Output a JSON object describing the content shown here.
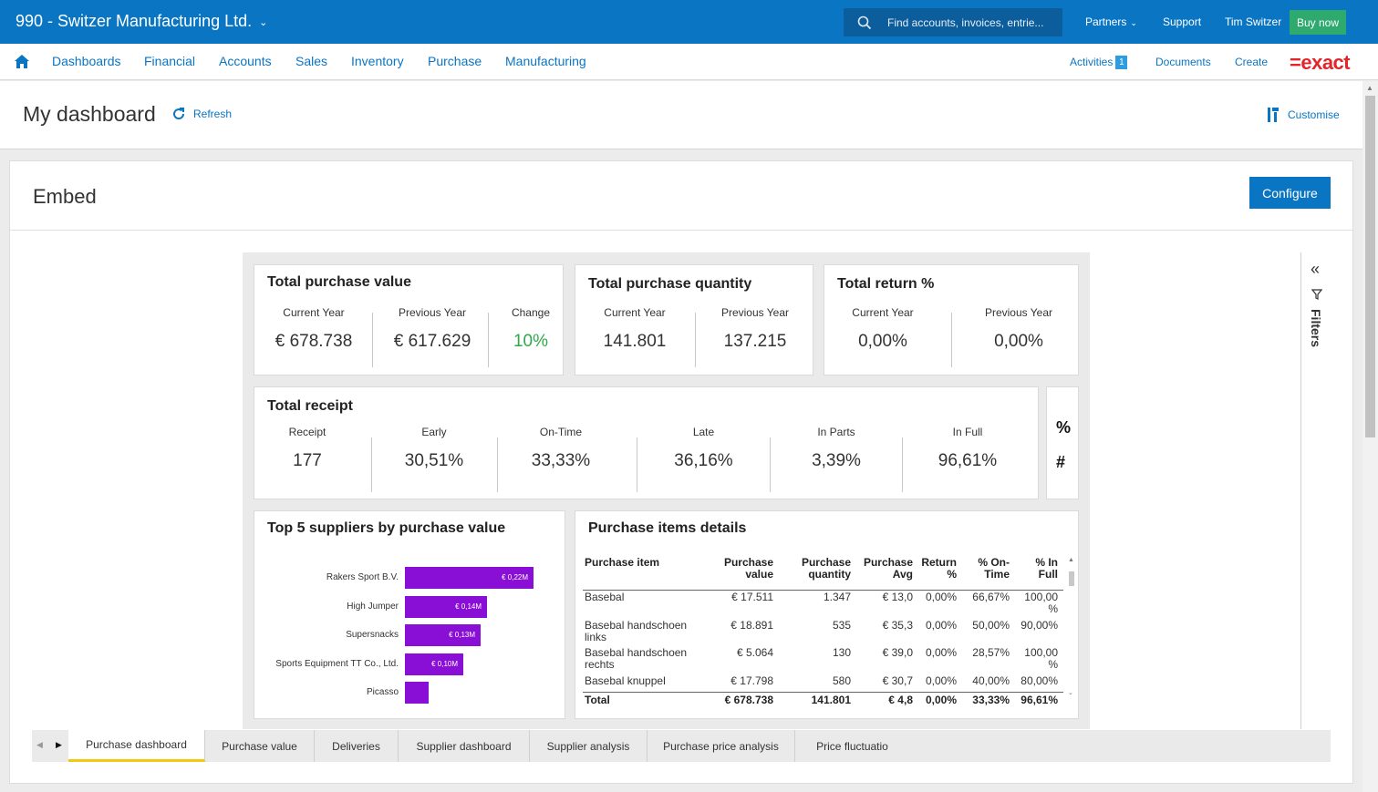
{
  "topbar": {
    "company": "990 - Switzer Manufacturing Ltd.",
    "search_placeholder": "Find accounts, invoices, entrie...",
    "partners": "Partners",
    "support": "Support",
    "user": "Tim Switzer",
    "buy_now": "Buy now"
  },
  "nav": {
    "items": [
      "Dashboards",
      "Financial",
      "Accounts",
      "Sales",
      "Inventory",
      "Purchase",
      "Manufacturing"
    ],
    "activities": "Activities",
    "activities_count": "1",
    "documents": "Documents",
    "create": "Create",
    "logo": "=exact"
  },
  "dashboard": {
    "title": "My dashboard",
    "refresh": "Refresh",
    "customise": "Customise"
  },
  "embed": {
    "title": "Embed",
    "configure": "Configure"
  },
  "kpis": {
    "purchase_value": {
      "title": "Total purchase value",
      "current_label": "Current Year",
      "current": "€ 678.738",
      "previous_label": "Previous Year",
      "previous": "€ 617.629",
      "change_label": "Change",
      "change": "10%"
    },
    "purchase_quantity": {
      "title": "Total purchase quantity",
      "current_label": "Current Year",
      "current": "141.801",
      "previous_label": "Previous Year",
      "previous": "137.215"
    },
    "return_pct": {
      "title": "Total return %",
      "current_label": "Current Year",
      "current": "0,00%",
      "previous_label": "Previous Year",
      "previous": "0,00%"
    },
    "receipt": {
      "title": "Total receipt",
      "cols": [
        {
          "label": "Receipt",
          "value": "177"
        },
        {
          "label": "Early",
          "value": "30,51%"
        },
        {
          "label": "On-Time",
          "value": "33,33%"
        },
        {
          "label": "Late",
          "value": "36,16%"
        },
        {
          "label": "In Parts",
          "value": "3,39%"
        },
        {
          "label": "In Full",
          "value": "96,61%"
        }
      ]
    },
    "toggle": {
      "percent": "%",
      "hash": "#"
    }
  },
  "suppliers": {
    "title": "Top 5 suppliers by purchase value"
  },
  "chart_data": {
    "type": "bar",
    "orientation": "horizontal",
    "title": "Top 5 suppliers by purchase value",
    "categories": [
      "Rakers Sport B.V.",
      "High Jumper",
      "Supersnacks",
      "Sports Equipment TT Co., Ltd.",
      "Picasso"
    ],
    "values": [
      0.22,
      0.14,
      0.13,
      0.1,
      0.04
    ],
    "value_labels": [
      "€ 0,22M",
      "€ 0,14M",
      "€ 0,13M",
      "€ 0,10M",
      ""
    ],
    "unit": "€ M",
    "color": "#8a0fd6"
  },
  "items_table": {
    "title": "Purchase items details",
    "headers": [
      [
        "Purchase item"
      ],
      [
        "Purchase",
        "value"
      ],
      [
        "Purchase",
        "quantity"
      ],
      [
        "Purchase",
        "Avg"
      ],
      [
        "Return",
        "%"
      ],
      [
        "% On-",
        "Time"
      ],
      [
        "% In",
        "Full"
      ]
    ],
    "rows": [
      {
        "item": [
          "Basebal"
        ],
        "value": "€ 17.511",
        "qty": "1.347",
        "avg": "€ 13,0",
        "ret": "0,00%",
        "ontime": "66,67%",
        "full": [
          "100,00",
          "%"
        ]
      },
      {
        "item": [
          "Basebal handschoen",
          "links"
        ],
        "value": "€ 18.891",
        "qty": "535",
        "avg": "€ 35,3",
        "ret": "0,00%",
        "ontime": "50,00%",
        "full": [
          "90,00%"
        ]
      },
      {
        "item": [
          "Basebal handschoen",
          "rechts"
        ],
        "value": "€ 5.064",
        "qty": "130",
        "avg": "€ 39,0",
        "ret": "0,00%",
        "ontime": "28,57%",
        "full": [
          "100,00",
          "%"
        ]
      },
      {
        "item": [
          "Basebal knuppel"
        ],
        "value": "€ 17.798",
        "qty": "580",
        "avg": "€ 30,7",
        "ret": "0,00%",
        "ontime": "40,00%",
        "full": [
          "80,00%"
        ]
      }
    ],
    "total": {
      "item": "Total",
      "value": "€ 678.738",
      "qty": "141.801",
      "avg": "€ 4,8",
      "ret": "0,00%",
      "ontime": "33,33%",
      "full": "96,61%"
    }
  },
  "filters": {
    "label": "Filters"
  },
  "tabs": [
    "Purchase dashboard",
    "Purchase value",
    "Deliveries",
    "Supplier dashboard",
    "Supplier analysis",
    "Purchase price analysis",
    "Price fluctuatio"
  ],
  "colors": {
    "brand_blue": "#0a75c2",
    "buy_green": "#2eaa6f",
    "bar_purple": "#8a0fd6",
    "change_green": "#2ea84a",
    "tab_active": "#f2c811"
  }
}
